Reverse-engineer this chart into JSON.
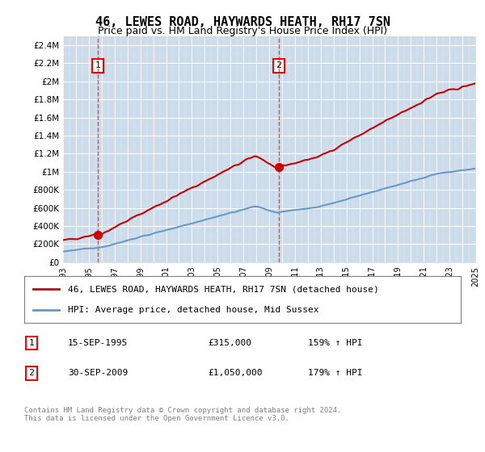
{
  "title": "46, LEWES ROAD, HAYWARDS HEATH, RH17 7SN",
  "subtitle": "Price paid vs. HM Land Registry's House Price Index (HPI)",
  "background_color": "#dce9f5",
  "plot_bg_color": "#dce9f5",
  "hatch_color": "#c0d0e0",
  "ylim": [
    0,
    2500000
  ],
  "yticks": [
    0,
    200000,
    400000,
    600000,
    800000,
    1000000,
    1200000,
    1400000,
    1600000,
    1800000,
    2000000,
    2200000,
    2400000
  ],
  "ytick_labels": [
    "£0",
    "£200K",
    "£400K",
    "£600K",
    "£800K",
    "£1M",
    "£1.2M",
    "£1.4M",
    "£1.6M",
    "£1.8M",
    "£2M",
    "£2.2M",
    "£2.4M"
  ],
  "property_color": "#cc0000",
  "hpi_color": "#6699cc",
  "legend_label_property": "46, LEWES ROAD, HAYWARDS HEATH, RH17 7SN (detached house)",
  "legend_label_hpi": "HPI: Average price, detached house, Mid Sussex",
  "transaction1_label": "1",
  "transaction1_date": "15-SEP-1995",
  "transaction1_price": "£315,000",
  "transaction1_pct": "159% ↑ HPI",
  "transaction2_label": "2",
  "transaction2_date": "30-SEP-2009",
  "transaction2_price": "£1,050,000",
  "transaction2_pct": "179% ↑ HPI",
  "footer": "Contains HM Land Registry data © Crown copyright and database right 2024.\nThis data is licensed under the Open Government Licence v3.0.",
  "x_start_year": 1993,
  "x_end_year": 2025
}
